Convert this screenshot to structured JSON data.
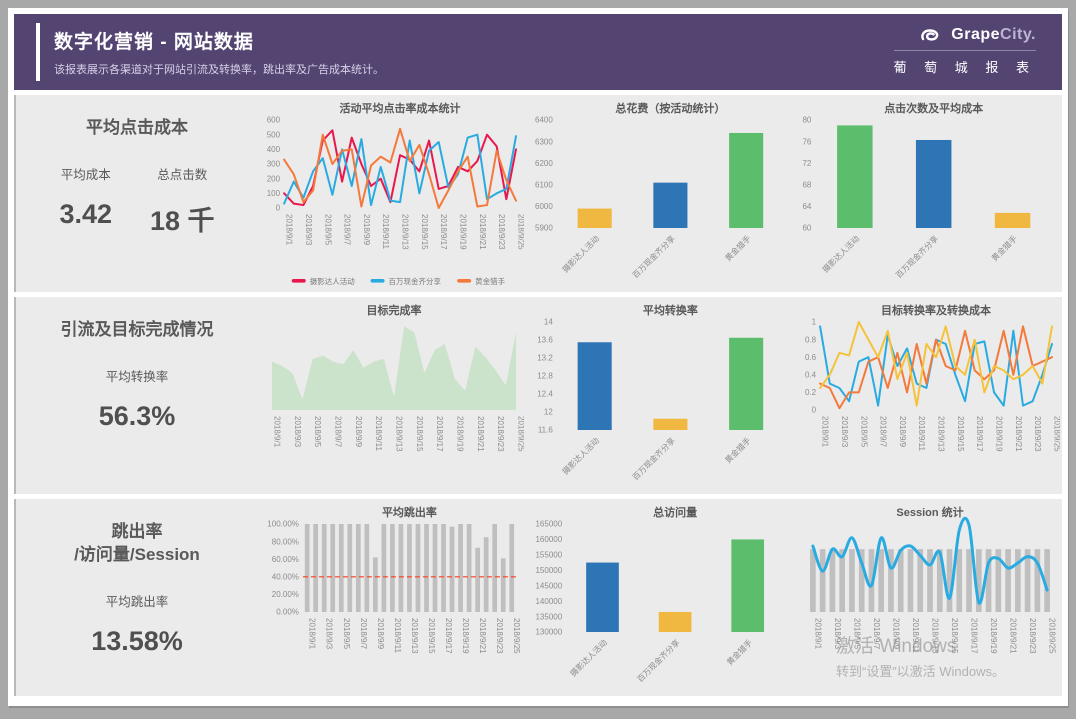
{
  "header": {
    "title": "数字化营销 - 网站数据",
    "subtitle": "该报表展示各渠道对于网站引流及转换率，跳出率及广告成本统计。",
    "brand_grape": "Grape",
    "brand_city": "City.",
    "brand_cn": "葡 萄 城 报 表"
  },
  "colors": {
    "header_bg": "#544472",
    "panel_bg": "#ebebeb",
    "series_red": "#E8174D",
    "series_blue": "#29ABE2",
    "series_orange": "#F4793B",
    "series_yellow": "#F5C33B",
    "bar_blue": "#2E75B5",
    "bar_yellow": "#F0B840",
    "bar_green": "#5CBE6C",
    "bar_gray": "#BFBFBF",
    "refline_red": "#FF3B1F",
    "area_green": "#CBE2CB"
  },
  "kpis": [
    {
      "title": "平均点击成本",
      "metrics": [
        {
          "label": "平均成本",
          "value": "3.42"
        },
        {
          "label": "总点击数",
          "value": "18 千"
        }
      ]
    },
    {
      "title": "引流及目标完成情况",
      "metrics": [
        {
          "label": "平均转换率",
          "value": "56.3%"
        }
      ]
    },
    {
      "title_line1": "跳出率",
      "title_line2": "/访问量/Session",
      "metrics": [
        {
          "label": "平均跳出率",
          "value": "13.58%"
        }
      ]
    }
  ],
  "watermark": {
    "line1": "激活 Windows",
    "line2": "转到“设置”以激活 Windows。"
  },
  "dates": [
    "2018/9/1",
    "2018/9/2",
    "2018/9/3",
    "2018/9/4",
    "2018/9/5",
    "2018/9/6",
    "2018/9/7",
    "2018/9/8",
    "2018/9/9",
    "2018/9/10",
    "2018/9/11",
    "2018/9/12",
    "2018/9/13",
    "2018/9/14",
    "2018/9/15",
    "2018/9/16",
    "2018/9/17",
    "2018/9/18",
    "2018/9/19",
    "2018/9/20",
    "2018/9/21",
    "2018/9/22",
    "2018/9/23",
    "2018/9/24",
    "2018/9/25"
  ],
  "chart_data": [
    {
      "id": "campaign-avg-cpc-trend",
      "type": "line",
      "title": "活动平均点击率成本统计",
      "x_ref": "dates",
      "x_label_every": 2,
      "ylim": [
        0,
        600
      ],
      "yticks": [
        0,
        100,
        200,
        300,
        400,
        500,
        600
      ],
      "legend": true,
      "series": [
        {
          "name": "摄影达人活动",
          "color": "#E8174D",
          "values": [
            100,
            30,
            20,
            150,
            460,
            530,
            180,
            480,
            300,
            150,
            200,
            40,
            360,
            330,
            250,
            460,
            130,
            150,
            280,
            250,
            320,
            500,
            420,
            60,
            400
          ]
        },
        {
          "name": "百万现金齐分享",
          "color": "#29ABE2",
          "values": [
            30,
            180,
            70,
            250,
            340,
            90,
            400,
            150,
            470,
            20,
            280,
            50,
            40,
            460,
            100,
            390,
            450,
            140,
            230,
            480,
            500,
            60,
            100,
            130,
            490
          ]
        },
        {
          "name": "黄金猎手",
          "color": "#F4793B",
          "values": [
            330,
            230,
            40,
            120,
            500,
            300,
            390,
            400,
            10,
            290,
            350,
            310,
            540,
            320,
            430,
            230,
            0,
            120,
            250,
            350,
            10,
            20,
            390,
            190,
            50
          ]
        }
      ]
    },
    {
      "id": "total-spend-by-campaign",
      "type": "bar",
      "title": "总花费（按活动统计）",
      "categories": [
        "摄影达人活动",
        "百万现金齐分享",
        "黄金猎手"
      ],
      "values": [
        5990,
        6110,
        6340
      ],
      "colors": [
        "#F0B840",
        "#2E75B5",
        "#5CBE6C"
      ],
      "ylim": [
        5900,
        6400
      ],
      "yticks": [
        5900,
        6000,
        6100,
        6200,
        6300,
        6400
      ]
    },
    {
      "id": "clicks-and-avg-cost",
      "type": "bar",
      "title": "点击次数及平均成本",
      "categories": [
        "摄影达人活动",
        "百万现金齐分享",
        "黄金猎手"
      ],
      "values": [
        79,
        76.3,
        62.8
      ],
      "colors": [
        "#5CBE6C",
        "#2E75B5",
        "#F0B840"
      ],
      "ylim": [
        60,
        80
      ],
      "yticks": [
        60,
        64,
        68,
        72,
        76,
        80
      ]
    },
    {
      "id": "goal-completion-rate",
      "type": "area",
      "title": "目标完成率",
      "x_ref": "dates",
      "x_label_every": 2,
      "ylim": [
        0,
        1
      ],
      "color": "#CBE2CB",
      "values": [
        0.55,
        0.5,
        0.42,
        0.12,
        0.58,
        0.62,
        0.55,
        0.52,
        0.68,
        0.48,
        0.55,
        0.58,
        0.15,
        0.95,
        0.88,
        0.42,
        0.68,
        0.75,
        0.35,
        0.22,
        0.72,
        0.6,
        0.45,
        0.28,
        0.88
      ]
    },
    {
      "id": "avg-conversion-by-campaign",
      "type": "bar",
      "title": "平均转换率",
      "categories": [
        "摄影达人活动",
        "百万现金齐分享",
        "黄金猎手"
      ],
      "values": [
        13.55,
        11.85,
        13.65
      ],
      "colors": [
        "#2E75B5",
        "#F0B840",
        "#5CBE6C"
      ],
      "ylim": [
        11.6,
        14
      ],
      "yticks": [
        11.6,
        12,
        12.4,
        12.8,
        13.2,
        13.6,
        14
      ]
    },
    {
      "id": "goal-conversion-and-cost",
      "type": "line",
      "title": "目标转换率及转换成本",
      "x_ref": "dates",
      "x_label_every": 2,
      "ylim": [
        0,
        1
      ],
      "yticks": [
        0,
        0.2,
        0.4,
        0.6,
        0.8,
        1
      ],
      "series": [
        {
          "name": "摄影达人活动",
          "color": "#29ABE2",
          "values": [
            0.95,
            0.3,
            0.25,
            0.1,
            0.55,
            0.6,
            0.05,
            0.85,
            0.5,
            0.7,
            0.3,
            0.25,
            0.8,
            0.75,
            0.4,
            0.1,
            0.75,
            0.78,
            0.2,
            0.05,
            0.9,
            0.05,
            0.1,
            0.4,
            0.75
          ]
        },
        {
          "name": "百万现金齐分享",
          "color": "#F4793B",
          "values": [
            0.3,
            0.25,
            0.02,
            0.2,
            0.2,
            0.55,
            0.6,
            0.25,
            0.65,
            0.2,
            0.75,
            0.3,
            0.8,
            0.5,
            0.45,
            0.9,
            0.45,
            0.35,
            0.45,
            0.9,
            0.4,
            0.95,
            0.5,
            0.55,
            0.6
          ]
        },
        {
          "name": "黄金猎手",
          "color": "#F5C33B",
          "values": [
            0.25,
            0.4,
            0.65,
            0.62,
            1,
            0.8,
            0.6,
            0.9,
            0.35,
            0.65,
            0.05,
            0.75,
            0.6,
            0.95,
            0.5,
            0.4,
            0.8,
            0.2,
            0.5,
            0.45,
            0.35,
            0.4,
            0.5,
            0.3,
            0.95
          ]
        }
      ]
    },
    {
      "id": "avg-bounce-rate",
      "type": "bar",
      "title": "平均跳出率",
      "x_ref": "dates",
      "x_label_every": 2,
      "color": "#BFBFBF",
      "values": [
        100,
        100,
        100,
        100,
        100,
        100,
        100,
        100,
        62,
        100,
        100,
        100,
        100,
        100,
        100,
        100,
        100,
        97,
        100,
        100,
        73,
        85,
        100,
        61,
        100
      ],
      "ylim": [
        0,
        100
      ],
      "yticks": [
        0,
        20,
        40,
        60,
        80,
        100
      ],
      "ytick_labels": [
        "0.00%",
        "20.00%",
        "40.00%",
        "60.00%",
        "80.00%",
        "100.00%"
      ],
      "refline": {
        "value": 40,
        "color": "#FF3B1F"
      }
    },
    {
      "id": "total-visits-by-campaign",
      "type": "bar",
      "title": "总访问量",
      "categories": [
        "摄影达人活动",
        "百万现金齐分享",
        "黄金猎手"
      ],
      "values": [
        152500,
        136500,
        160000
      ],
      "colors": [
        "#2E75B5",
        "#F0B840",
        "#5CBE6C"
      ],
      "ylim": [
        130000,
        165000
      ],
      "yticks": [
        130000,
        135000,
        140000,
        145000,
        150000,
        155000,
        160000,
        165000
      ]
    },
    {
      "id": "session-stats",
      "type": "combo",
      "title": "Session 统计",
      "x_ref": "dates",
      "x_label_every": 2,
      "ylim": [
        0,
        140
      ],
      "bar_value": 100,
      "bar_color": "#BFBFBF",
      "line": {
        "name": "Session",
        "color": "#29ABE2",
        "values": [
          105,
          65,
          100,
          88,
          118,
          78,
          42,
          118,
          70,
          98,
          105,
          90,
          75,
          95,
          22,
          130,
          138,
          15,
          78,
          85,
          70,
          78,
          88,
          78,
          35
        ]
      }
    }
  ]
}
